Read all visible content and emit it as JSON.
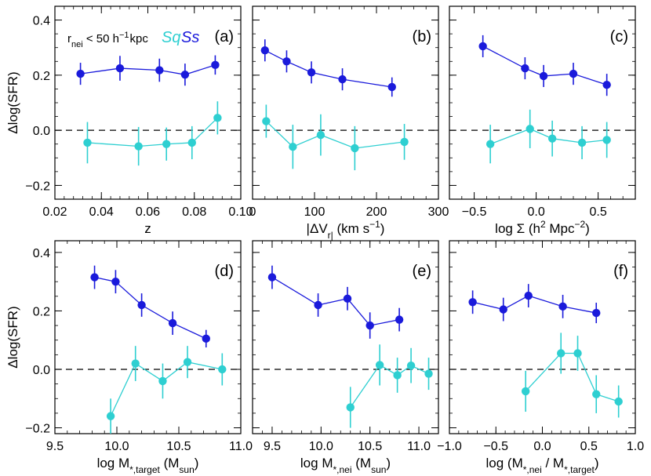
{
  "chart_data": [
    {
      "id": "a",
      "type": "line",
      "panel_label": "(a)",
      "xlabel": "z",
      "ylabel": "Δlog(SFR)",
      "xlim": [
        0.02,
        0.1
      ],
      "ylim": [
        -0.25,
        0.45
      ],
      "xticks": [
        0.02,
        0.04,
        0.06,
        0.08,
        0.1
      ],
      "xtick_labels": [
        "0.02",
        "0.04",
        "0.06",
        "0.08",
        "0.10"
      ],
      "yticks": [
        -0.2,
        0.0,
        0.2,
        0.4
      ],
      "ytick_labels": [
        "−0.2",
        "0.0",
        "0.2",
        "0.4"
      ],
      "reference_line": 0.0,
      "legend": {
        "condition": "r<sub>nei</sub> < 50 h<sup>−1</sup>kpc",
        "condition_main": "r",
        "condition_sub": "nei",
        "condition_mid": " < 50 h",
        "condition_sup": "−1",
        "condition_end": "kpc",
        "sq": "Sq",
        "ss": "Ss"
      },
      "series": [
        {
          "name": "Ss",
          "color": "#1a1adb",
          "x": [
            0.031,
            0.048,
            0.065,
            0.076,
            0.089
          ],
          "y": [
            0.205,
            0.225,
            0.218,
            0.202,
            0.237
          ],
          "err": [
            0.04,
            0.045,
            0.042,
            0.04,
            0.035
          ]
        },
        {
          "name": "Sq",
          "color": "#2ecfd1",
          "x": [
            0.034,
            0.056,
            0.068,
            0.079,
            0.09
          ],
          "y": [
            -0.045,
            -0.058,
            -0.05,
            -0.045,
            0.045
          ],
          "err": [
            0.075,
            0.07,
            0.06,
            0.06,
            0.06
          ]
        }
      ]
    },
    {
      "id": "b",
      "type": "line",
      "panel_label": "(b)",
      "xlabel": "|ΔV_r| (km s^-1)",
      "ylabel": "",
      "xlim": [
        0,
        300
      ],
      "ylim": [
        -0.25,
        0.45
      ],
      "xticks": [
        0,
        100,
        200,
        300
      ],
      "xtick_labels": [
        "0",
        "100",
        "200",
        "300"
      ],
      "yticks": [
        -0.2,
        0.0,
        0.2,
        0.4
      ],
      "ytick_labels": [],
      "reference_line": 0.0,
      "series": [
        {
          "name": "Ss",
          "color": "#1a1adb",
          "x": [
            20,
            55,
            95,
            145,
            225
          ],
          "y": [
            0.29,
            0.25,
            0.21,
            0.185,
            0.157
          ],
          "err": [
            0.04,
            0.04,
            0.04,
            0.04,
            0.035
          ]
        },
        {
          "name": "Sq",
          "color": "#2ecfd1",
          "x": [
            22,
            65,
            110,
            165,
            245
          ],
          "y": [
            0.033,
            -0.06,
            -0.017,
            -0.065,
            -0.042
          ],
          "err": [
            0.06,
            0.08,
            0.075,
            0.08,
            0.065
          ]
        }
      ]
    },
    {
      "id": "c",
      "type": "line",
      "panel_label": "(c)",
      "xlabel": "log Σ (h^2 Mpc^-2)",
      "ylabel": "",
      "xlim": [
        -0.7,
        0.8
      ],
      "ylim": [
        -0.25,
        0.45
      ],
      "xticks": [
        -0.5,
        0.0,
        0.5
      ],
      "xtick_labels": [
        "−0.5",
        "0.0",
        "0.5"
      ],
      "yticks": [
        -0.2,
        0.0,
        0.2,
        0.4
      ],
      "ytick_labels": [],
      "reference_line": 0.0,
      "series": [
        {
          "name": "Ss",
          "color": "#1a1adb",
          "x": [
            -0.43,
            -0.09,
            0.06,
            0.3,
            0.57
          ],
          "y": [
            0.305,
            0.225,
            0.197,
            0.205,
            0.165
          ],
          "err": [
            0.04,
            0.04,
            0.04,
            0.04,
            0.04
          ]
        },
        {
          "name": "Sq",
          "color": "#2ecfd1",
          "x": [
            -0.37,
            -0.05,
            0.13,
            0.37,
            0.57
          ],
          "y": [
            -0.05,
            0.005,
            -0.03,
            -0.045,
            -0.035
          ],
          "err": [
            0.07,
            0.07,
            0.065,
            0.06,
            0.065
          ]
        }
      ]
    },
    {
      "id": "d",
      "type": "line",
      "panel_label": "(d)",
      "xlabel": "log M_*,target (M_sun)",
      "ylabel": "Δlog(SFR)",
      "xlim": [
        9.5,
        11.0
      ],
      "ylim": [
        -0.22,
        0.44
      ],
      "xticks": [
        9.5,
        10.0,
        10.5,
        11.0
      ],
      "xtick_labels": [
        "9.5",
        "10.0",
        "10.5",
        "11.0"
      ],
      "yticks": [
        -0.2,
        0.0,
        0.2,
        0.4
      ],
      "ytick_labels": [
        "−0.2",
        "0.0",
        "0.2",
        "0.4"
      ],
      "reference_line": 0.0,
      "series": [
        {
          "name": "Ss",
          "color": "#1a1adb",
          "x": [
            9.82,
            9.99,
            10.2,
            10.45,
            10.72
          ],
          "y": [
            0.315,
            0.3,
            0.22,
            0.158,
            0.105
          ],
          "err": [
            0.04,
            0.04,
            0.04,
            0.04,
            0.03
          ]
        },
        {
          "name": "Sq",
          "color": "#2ecfd1",
          "x": [
            9.95,
            10.15,
            10.37,
            10.57,
            10.85
          ],
          "y": [
            -0.16,
            0.02,
            -0.04,
            0.025,
            0.0
          ],
          "err": [
            0.06,
            0.06,
            0.06,
            0.055,
            0.055
          ]
        }
      ]
    },
    {
      "id": "e",
      "type": "line",
      "panel_label": "(e)",
      "xlabel": "log M_*,nei (M_sun)",
      "ylabel": "",
      "xlim": [
        9.3,
        11.2
      ],
      "ylim": [
        -0.22,
        0.44
      ],
      "xticks": [
        9.5,
        10.0,
        10.5,
        11.0
      ],
      "xtick_labels": [
        "9.5",
        "10.0",
        "10.5",
        "11.0"
      ],
      "yticks": [
        -0.2,
        0.0,
        0.2,
        0.4
      ],
      "ytick_labels": [],
      "reference_line": 0.0,
      "series": [
        {
          "name": "Ss",
          "color": "#1a1adb",
          "x": [
            9.5,
            9.97,
            10.27,
            10.5,
            10.8
          ],
          "y": [
            0.315,
            0.22,
            0.242,
            0.15,
            0.17
          ],
          "err": [
            0.04,
            0.04,
            0.04,
            0.045,
            0.04
          ]
        },
        {
          "name": "Sq",
          "color": "#2ecfd1",
          "x": [
            10.3,
            10.6,
            10.78,
            10.92,
            11.1
          ],
          "y": [
            -0.13,
            0.015,
            -0.02,
            0.013,
            -0.015
          ],
          "err": [
            0.07,
            0.07,
            0.06,
            0.06,
            0.055
          ]
        }
      ]
    },
    {
      "id": "f",
      "type": "line",
      "panel_label": "(f)",
      "xlabel": "log (M_*,nei / M_*,target)",
      "ylabel": "",
      "xlim": [
        -1.0,
        1.0
      ],
      "ylim": [
        -0.22,
        0.44
      ],
      "xticks": [
        -1.0,
        -0.5,
        0.0,
        0.5,
        1.0
      ],
      "xtick_labels": [
        "−1.0",
        "−0.5",
        "0.0",
        "0.5",
        "1.0"
      ],
      "yticks": [
        -0.2,
        0.0,
        0.2,
        0.4
      ],
      "ytick_labels": [],
      "reference_line": 0.0,
      "series": [
        {
          "name": "Ss",
          "color": "#1a1adb",
          "x": [
            -0.75,
            -0.42,
            -0.15,
            0.22,
            0.58
          ],
          "y": [
            0.23,
            0.205,
            0.252,
            0.215,
            0.193
          ],
          "err": [
            0.04,
            0.04,
            0.04,
            0.04,
            0.035
          ]
        },
        {
          "name": "Sq",
          "color": "#2ecfd1",
          "x": [
            -0.18,
            0.2,
            0.38,
            0.58,
            0.82
          ],
          "y": [
            -0.075,
            0.055,
            0.055,
            -0.085,
            -0.11
          ],
          "err": [
            0.07,
            0.07,
            0.06,
            0.065,
            0.055
          ]
        }
      ]
    }
  ]
}
